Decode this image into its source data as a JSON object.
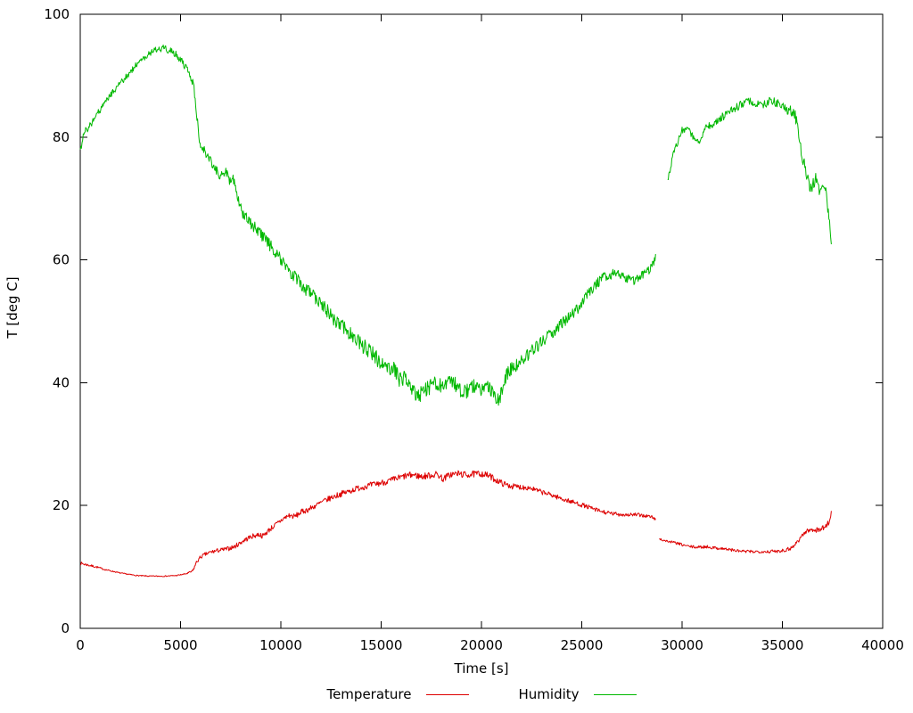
{
  "chart_data": {
    "type": "line",
    "title": "",
    "xlabel": "Time [s]",
    "ylabel": "T [deg C]",
    "xlim": [
      0,
      40000
    ],
    "ylim": [
      0,
      100
    ],
    "xticks": [
      0,
      5000,
      10000,
      15000,
      20000,
      25000,
      30000,
      35000,
      40000
    ],
    "yticks": [
      0,
      20,
      40,
      60,
      80,
      100
    ],
    "grid": false,
    "legend_position": "bottom-center",
    "background_color": "#ffffff",
    "axis_color": "#000000",
    "text_color": "#000000",
    "sample_step": 30,
    "series": [
      {
        "name": "Temperature",
        "color": "#dd0000",
        "gaps": [
          [
            28680,
            28840
          ]
        ],
        "noise": [
          [
            0,
            0.25
          ],
          [
            1200,
            0.12
          ],
          [
            2000,
            0.08
          ],
          [
            5200,
            0.08
          ],
          [
            5800,
            0.3
          ],
          [
            7000,
            0.35
          ],
          [
            10000,
            0.45
          ],
          [
            14000,
            0.5
          ],
          [
            16000,
            0.55
          ],
          [
            20000,
            0.55
          ],
          [
            23000,
            0.4
          ],
          [
            26000,
            0.35
          ],
          [
            28650,
            0.3
          ],
          [
            28850,
            0.2
          ],
          [
            31000,
            0.25
          ],
          [
            34000,
            0.25
          ],
          [
            35500,
            0.35
          ],
          [
            37450,
            0.45
          ]
        ],
        "keypoints": [
          [
            0,
            10.6
          ],
          [
            400,
            10.3
          ],
          [
            800,
            10.0
          ],
          [
            1200,
            9.6
          ],
          [
            1600,
            9.3
          ],
          [
            2000,
            9.0
          ],
          [
            2400,
            8.8
          ],
          [
            2800,
            8.6
          ],
          [
            3400,
            8.5
          ],
          [
            4200,
            8.5
          ],
          [
            4800,
            8.6
          ],
          [
            5300,
            8.9
          ],
          [
            5600,
            9.3
          ],
          [
            5800,
            10.8
          ],
          [
            6000,
            11.6
          ],
          [
            6200,
            12.0
          ],
          [
            6500,
            12.4
          ],
          [
            6900,
            12.7
          ],
          [
            7300,
            12.9
          ],
          [
            7700,
            13.3
          ],
          [
            8100,
            14.2
          ],
          [
            8500,
            14.9
          ],
          [
            8900,
            15.3
          ],
          [
            9100,
            15.0
          ],
          [
            9400,
            16.0
          ],
          [
            9800,
            17.0
          ],
          [
            10100,
            17.8
          ],
          [
            10400,
            18.4
          ],
          [
            10700,
            18.2
          ],
          [
            11000,
            18.9
          ],
          [
            11400,
            19.4
          ],
          [
            11800,
            20.1
          ],
          [
            12200,
            20.8
          ],
          [
            12600,
            21.4
          ],
          [
            13000,
            21.9
          ],
          [
            13400,
            22.3
          ],
          [
            13800,
            22.8
          ],
          [
            14200,
            23.1
          ],
          [
            14600,
            23.4
          ],
          [
            15000,
            23.7
          ],
          [
            15400,
            24.0
          ],
          [
            15800,
            24.4
          ],
          [
            16200,
            24.8
          ],
          [
            16600,
            25.0
          ],
          [
            17000,
            24.7
          ],
          [
            17400,
            24.9
          ],
          [
            17800,
            25.1
          ],
          [
            18100,
            24.3
          ],
          [
            18400,
            25.0
          ],
          [
            18800,
            25.2
          ],
          [
            19200,
            25.0
          ],
          [
            19600,
            25.1
          ],
          [
            20000,
            25.2
          ],
          [
            20400,
            24.8
          ],
          [
            20800,
            24.0
          ],
          [
            21200,
            23.4
          ],
          [
            21600,
            23.1
          ],
          [
            22000,
            23.0
          ],
          [
            22400,
            22.9
          ],
          [
            22800,
            22.4
          ],
          [
            23200,
            22.0
          ],
          [
            23600,
            21.6
          ],
          [
            24000,
            21.1
          ],
          [
            24400,
            20.7
          ],
          [
            24800,
            20.3
          ],
          [
            25200,
            19.9
          ],
          [
            25600,
            19.4
          ],
          [
            26000,
            19.0
          ],
          [
            26400,
            18.7
          ],
          [
            26800,
            18.6
          ],
          [
            27200,
            18.5
          ],
          [
            27600,
            18.5
          ],
          [
            28000,
            18.4
          ],
          [
            28400,
            18.2
          ],
          [
            28650,
            17.9
          ],
          [
            28850,
            14.6
          ],
          [
            29100,
            14.3
          ],
          [
            29400,
            14.1
          ],
          [
            29700,
            13.9
          ],
          [
            30000,
            13.6
          ],
          [
            30400,
            13.3
          ],
          [
            30800,
            13.2
          ],
          [
            31200,
            13.3
          ],
          [
            31600,
            13.1
          ],
          [
            32000,
            13.0
          ],
          [
            32400,
            12.8
          ],
          [
            32800,
            12.6
          ],
          [
            33200,
            12.5
          ],
          [
            33600,
            12.5
          ],
          [
            34000,
            12.5
          ],
          [
            34400,
            12.5
          ],
          [
            34800,
            12.6
          ],
          [
            35200,
            12.8
          ],
          [
            35500,
            13.2
          ],
          [
            35800,
            14.3
          ],
          [
            36000,
            15.2
          ],
          [
            36200,
            15.8
          ],
          [
            36500,
            16.1
          ],
          [
            36800,
            16.0
          ],
          [
            37000,
            16.3
          ],
          [
            37200,
            16.8
          ],
          [
            37350,
            17.5
          ],
          [
            37450,
            19.0
          ]
        ]
      },
      {
        "name": "Humidity",
        "color": "#00b800",
        "gaps": [
          [
            28680,
            29280
          ]
        ],
        "noise": [
          [
            0,
            0.6
          ],
          [
            3000,
            0.5
          ],
          [
            5500,
            0.6
          ],
          [
            8000,
            0.9
          ],
          [
            12000,
            1.1
          ],
          [
            15000,
            1.3
          ],
          [
            18000,
            1.2
          ],
          [
            21000,
            1.2
          ],
          [
            24000,
            0.9
          ],
          [
            28650,
            0.7
          ],
          [
            29300,
            0.6
          ],
          [
            32000,
            0.7
          ],
          [
            35000,
            0.7
          ],
          [
            36000,
            1.2
          ],
          [
            37450,
            0.9
          ]
        ],
        "keypoints": [
          [
            0,
            77.5
          ],
          [
            150,
            80.5
          ],
          [
            400,
            81.5
          ],
          [
            700,
            83
          ],
          [
            1000,
            84.5
          ],
          [
            1400,
            86.5
          ],
          [
            1800,
            88
          ],
          [
            2200,
            89.5
          ],
          [
            2600,
            91
          ],
          [
            3000,
            92.5
          ],
          [
            3400,
            93.5
          ],
          [
            3800,
            94.3
          ],
          [
            4200,
            94.5
          ],
          [
            4500,
            94.0
          ],
          [
            4800,
            93.4
          ],
          [
            5100,
            92.2
          ],
          [
            5400,
            90.5
          ],
          [
            5650,
            88.5
          ],
          [
            5800,
            84.0
          ],
          [
            5950,
            79.0
          ],
          [
            6150,
            78.0
          ],
          [
            6400,
            76.5
          ],
          [
            6700,
            75.0
          ],
          [
            7000,
            73.5
          ],
          [
            7250,
            74.5
          ],
          [
            7450,
            72.5
          ],
          [
            7600,
            74.0
          ],
          [
            7800,
            70.5
          ],
          [
            8100,
            67.5
          ],
          [
            8500,
            66.0
          ],
          [
            8900,
            64.5
          ],
          [
            9300,
            63.0
          ],
          [
            9700,
            61.5
          ],
          [
            10100,
            59.5
          ],
          [
            10500,
            58.0
          ],
          [
            10900,
            56.5
          ],
          [
            11300,
            55.0
          ],
          [
            11700,
            54.0
          ],
          [
            12100,
            52.5
          ],
          [
            12500,
            51.0
          ],
          [
            12900,
            49.5
          ],
          [
            13300,
            48.5
          ],
          [
            13700,
            47.5
          ],
          [
            14100,
            46.0
          ],
          [
            14500,
            45.0
          ],
          [
            14900,
            43.5
          ],
          [
            15300,
            42.0
          ],
          [
            15600,
            42.5
          ],
          [
            15900,
            40.5
          ],
          [
            16200,
            41.0
          ],
          [
            16500,
            38.5
          ],
          [
            16900,
            38.0
          ],
          [
            17300,
            39.0
          ],
          [
            17700,
            40.0
          ],
          [
            18100,
            39.5
          ],
          [
            18500,
            40.5
          ],
          [
            18900,
            39.0
          ],
          [
            19200,
            38.5
          ],
          [
            19600,
            39.5
          ],
          [
            20000,
            38.5
          ],
          [
            20300,
            39.5
          ],
          [
            20600,
            38.0
          ],
          [
            20900,
            37.0
          ],
          [
            21100,
            40.0
          ],
          [
            21400,
            42.0
          ],
          [
            21800,
            43.0
          ],
          [
            22300,
            44.5
          ],
          [
            22800,
            46.0
          ],
          [
            23300,
            47.5
          ],
          [
            23800,
            49.0
          ],
          [
            24300,
            50.5
          ],
          [
            24800,
            52.0
          ],
          [
            25200,
            54.0
          ],
          [
            25600,
            55.5
          ],
          [
            26000,
            57.0
          ],
          [
            26400,
            57.5
          ],
          [
            26800,
            58.0
          ],
          [
            27200,
            57.0
          ],
          [
            27600,
            56.5
          ],
          [
            28000,
            57.5
          ],
          [
            28400,
            58.5
          ],
          [
            28650,
            60.0
          ],
          [
            29300,
            73.0
          ],
          [
            29500,
            76.5
          ],
          [
            29750,
            79.0
          ],
          [
            30000,
            81.0
          ],
          [
            30250,
            81.5
          ],
          [
            30550,
            80.0
          ],
          [
            30850,
            79.5
          ],
          [
            31150,
            81.5
          ],
          [
            31500,
            82.0
          ],
          [
            31900,
            83.0
          ],
          [
            32300,
            84.0
          ],
          [
            32800,
            85.0
          ],
          [
            33200,
            86.0
          ],
          [
            33600,
            85.5
          ],
          [
            34000,
            85.0
          ],
          [
            34400,
            86.0
          ],
          [
            34800,
            85.5
          ],
          [
            35200,
            84.5
          ],
          [
            35600,
            84.0
          ],
          [
            35850,
            80.0
          ],
          [
            36050,
            76.0
          ],
          [
            36250,
            73.0
          ],
          [
            36450,
            71.5
          ],
          [
            36650,
            73.5
          ],
          [
            36850,
            71.5
          ],
          [
            37050,
            72.5
          ],
          [
            37200,
            70.5
          ],
          [
            37350,
            66.0
          ],
          [
            37450,
            62.0
          ]
        ]
      }
    ]
  }
}
